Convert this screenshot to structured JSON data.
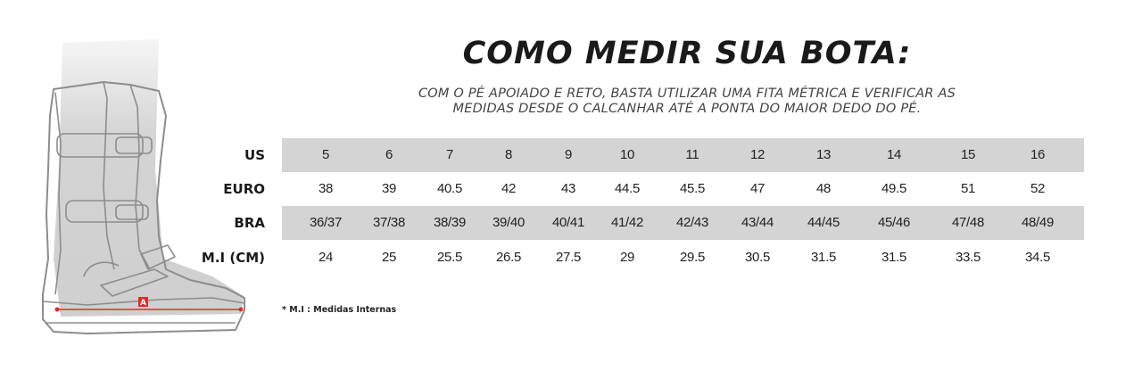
{
  "title": "COMO MEDIR SUA BOTA:",
  "subtitle": {
    "line1": "COM O PÉ APOIADO E RETO, BASTA UTILIZAR UMA FITA MÉTRICA E VERIFICAR AS",
    "line2": "MEDIDAS DESDE O CALCANHAR ATÉ A PONTA DO MAIOR DEDO DO PÉ."
  },
  "size_table": {
    "rows": [
      {
        "label": "US",
        "values": [
          "5",
          "6",
          "7",
          "8",
          "9",
          "10",
          "11",
          "12",
          "13",
          "14",
          "15",
          "16"
        ]
      },
      {
        "label": "EURO",
        "values": [
          "38",
          "39",
          "40.5",
          "42",
          "43",
          "44.5",
          "45.5",
          "47",
          "48",
          "49.5",
          "51",
          "52"
        ]
      },
      {
        "label": "BRA",
        "values": [
          "36/37",
          "37/38",
          "38/39",
          "39/40",
          "40/41",
          "41/42",
          "42/43",
          "43/44",
          "44/45",
          "45/46",
          "47/48",
          "48/49"
        ]
      },
      {
        "label": "M.I (CM)",
        "values": [
          "24",
          "25",
          "25.5",
          "26.5",
          "27.5",
          "29",
          "29.5",
          "30.5",
          "31.5",
          "31.5",
          "33.5",
          "34.5"
        ]
      }
    ]
  },
  "footnote": "* M.I : Medidas Internas",
  "boot_illustration": {
    "marker_letter": "A",
    "accent_color": "#e02a2a",
    "row_shade_color": "#d4d4d4"
  }
}
